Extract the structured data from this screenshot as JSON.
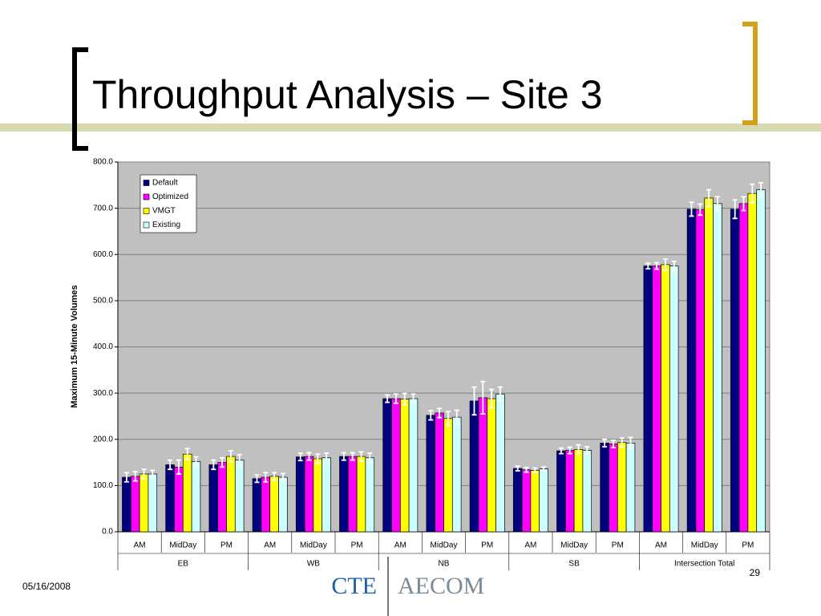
{
  "slide": {
    "title": "Throughput Analysis – Site 3",
    "date": "05/16/2008",
    "page_number": "29",
    "logos": [
      "CTE",
      "AECOM"
    ]
  },
  "chart_data": {
    "type": "bar",
    "y_label": "Maximum 15-Minute Volumes",
    "categories": [
      "AM",
      "MidDay",
      "PM",
      "AM",
      "MidDay",
      "PM",
      "AM",
      "MidDay",
      "PM",
      "AM",
      "MidDay",
      "PM",
      "AM",
      "MidDay",
      "PM"
    ],
    "groups": [
      "EB",
      "WB",
      "NB",
      "SB",
      "Intersection Total"
    ],
    "series": [
      {
        "name": "Default",
        "color": "#000080",
        "values": [
          118,
          145,
          145,
          115,
          162,
          163,
          288,
          252,
          283,
          137,
          175,
          192,
          575,
          698,
          698
        ],
        "errors": [
          10,
          10,
          10,
          8,
          8,
          8,
          8,
          10,
          30,
          5,
          6,
          8,
          6,
          15,
          20
        ]
      },
      {
        "name": "Optimized",
        "color": "#ff00ff",
        "values": [
          120,
          140,
          150,
          118,
          163,
          163,
          288,
          257,
          290,
          134,
          176,
          190,
          575,
          697,
          710
        ],
        "errors": [
          10,
          15,
          10,
          10,
          8,
          8,
          10,
          10,
          35,
          5,
          7,
          8,
          7,
          12,
          15
        ]
      },
      {
        "name": "VMGT",
        "color": "#ffff00",
        "values": [
          125,
          168,
          163,
          120,
          158,
          163,
          287,
          245,
          288,
          133,
          178,
          193,
          578,
          722,
          732
        ],
        "errors": [
          10,
          12,
          12,
          8,
          10,
          10,
          12,
          15,
          20,
          5,
          10,
          10,
          12,
          18,
          20
        ]
      },
      {
        "name": "Existing",
        "color": "#ccffff",
        "values": [
          125,
          152,
          155,
          118,
          160,
          160,
          288,
          248,
          298,
          136,
          176,
          192,
          575,
          710,
          740
        ],
        "errors": [
          8,
          10,
          12,
          8,
          10,
          10,
          10,
          15,
          15,
          4,
          8,
          12,
          10,
          15,
          15
        ]
      }
    ],
    "ylim": [
      0,
      800
    ],
    "yticks": [
      {
        "value": 0,
        "label": "0.0"
      },
      {
        "value": 100,
        "label": "100.0"
      },
      {
        "value": 200,
        "label": "200.0"
      },
      {
        "value": 300,
        "label": "300.0"
      },
      {
        "value": 400,
        "label": "400.0"
      },
      {
        "value": 500,
        "label": "500.0"
      },
      {
        "value": 600,
        "label": "600.0"
      },
      {
        "value": 700,
        "label": "700.0"
      },
      {
        "value": 800,
        "label": "800.0"
      }
    ],
    "grid": true,
    "legend": "upper-left",
    "plot_background": "#c0c0c0"
  }
}
